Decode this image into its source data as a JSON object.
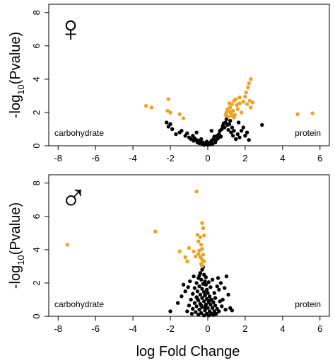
{
  "figure": {
    "xlabel": "log Fold Change"
  },
  "colors": {
    "significant": "#F0A020",
    "nonsignificant": "#000000",
    "axis": "#000000"
  },
  "chart_data": [
    {
      "type": "scatter",
      "panel": "top",
      "symbol": "♀",
      "symbol_meaning": "female",
      "ylabel_main": "-log",
      "ylabel_sub": "10",
      "ylabel_tail": "(Pvalue)",
      "left_annotation": "carbohydrate",
      "right_annotation": "protein",
      "xlim": [
        -8.5,
        6.5
      ],
      "ylim": [
        0,
        8.5
      ],
      "xticks": [
        "-8",
        "-6",
        "-4",
        "-2",
        "0",
        "2",
        "4",
        "6"
      ],
      "yticks": [
        "0",
        "2",
        "4",
        "6",
        "8"
      ],
      "series": [
        {
          "significance": "significant",
          "color": "#F0A020",
          "points": [
            [
              -3.3,
              2.4
            ],
            [
              -3.0,
              2.3
            ],
            [
              -2.1,
              2.8
            ],
            [
              -2.15,
              2.1
            ],
            [
              -2.0,
              2.0
            ],
            [
              -1.5,
              1.9
            ],
            [
              -1.3,
              1.65
            ],
            [
              4.8,
              1.9
            ],
            [
              5.6,
              1.95
            ],
            [
              2.3,
              4.0
            ],
            [
              2.2,
              3.75
            ],
            [
              2.15,
              3.5
            ],
            [
              2.05,
              3.2
            ],
            [
              2.0,
              2.95
            ],
            [
              2.25,
              2.7
            ],
            [
              1.9,
              2.65
            ],
            [
              1.7,
              2.55
            ],
            [
              1.5,
              2.8
            ],
            [
              1.4,
              2.7
            ],
            [
              1.3,
              2.5
            ],
            [
              1.2,
              2.3
            ],
            [
              1.15,
              2.55
            ],
            [
              1.05,
              2.2
            ],
            [
              1.0,
              2.0
            ],
            [
              0.95,
              1.85
            ],
            [
              1.1,
              1.75
            ],
            [
              1.25,
              1.95
            ],
            [
              1.35,
              2.1
            ],
            [
              1.45,
              1.85
            ],
            [
              1.6,
              2.2
            ],
            [
              1.8,
              2.0
            ],
            [
              2.1,
              2.5
            ],
            [
              2.3,
              2.3
            ],
            [
              1.7,
              2.9
            ],
            [
              1.55,
              2.45
            ],
            [
              1.2,
              2.05
            ],
            [
              1.4,
              1.7
            ],
            [
              1.3,
              1.8
            ],
            [
              2.4,
              2.6
            ]
          ]
        },
        {
          "significance": "nonsignificant",
          "color": "#000000",
          "points": [
            [
              -2.2,
              1.4
            ],
            [
              -2.0,
              1.3
            ],
            [
              -2.1,
              1.15
            ],
            [
              -1.9,
              1.0
            ],
            [
              -1.7,
              0.7
            ],
            [
              -1.5,
              0.8
            ],
            [
              -1.4,
              0.9
            ],
            [
              -1.2,
              0.6
            ],
            [
              -1.1,
              0.75
            ],
            [
              -1.0,
              0.5
            ],
            [
              -0.9,
              0.4
            ],
            [
              -0.8,
              0.6
            ],
            [
              -0.75,
              0.3
            ],
            [
              -0.7,
              0.45
            ],
            [
              -0.6,
              0.35
            ],
            [
              -0.55,
              0.2
            ],
            [
              -0.5,
              0.3
            ],
            [
              -0.45,
              0.15
            ],
            [
              -0.4,
              0.25
            ],
            [
              -0.35,
              0.4
            ],
            [
              -0.3,
              0.1
            ],
            [
              -0.25,
              0.2
            ],
            [
              -0.2,
              0.05
            ],
            [
              -0.15,
              0.15
            ],
            [
              -0.1,
              0.1
            ],
            [
              -0.05,
              0.25
            ],
            [
              0.0,
              0.05
            ],
            [
              0.05,
              0.15
            ],
            [
              0.1,
              0.08
            ],
            [
              0.15,
              0.2
            ],
            [
              0.2,
              0.3
            ],
            [
              0.25,
              0.1
            ],
            [
              0.3,
              0.4
            ],
            [
              0.35,
              0.55
            ],
            [
              0.4,
              0.2
            ],
            [
              0.45,
              0.35
            ],
            [
              0.5,
              0.6
            ],
            [
              0.55,
              0.45
            ],
            [
              0.6,
              0.7
            ],
            [
              0.65,
              0.9
            ],
            [
              0.7,
              0.55
            ],
            [
              0.75,
              1.0
            ],
            [
              0.8,
              1.2
            ],
            [
              0.85,
              1.35
            ],
            [
              0.9,
              1.1
            ],
            [
              0.95,
              1.4
            ],
            [
              1.0,
              1.6
            ],
            [
              1.05,
              1.25
            ],
            [
              1.1,
              0.95
            ],
            [
              1.15,
              1.3
            ],
            [
              1.2,
              1.5
            ],
            [
              1.25,
              0.8
            ],
            [
              1.3,
              1.1
            ],
            [
              1.35,
              0.6
            ],
            [
              1.4,
              0.9
            ],
            [
              1.5,
              0.4
            ],
            [
              1.6,
              0.7
            ],
            [
              1.7,
              0.5
            ],
            [
              1.8,
              0.9
            ],
            [
              1.9,
              1.1
            ],
            [
              2.0,
              0.6
            ],
            [
              2.1,
              0.8
            ],
            [
              2.2,
              0.35
            ],
            [
              2.9,
              1.25
            ],
            [
              0.2,
              0.9
            ],
            [
              -0.6,
              0.8
            ],
            [
              1.65,
              1.4
            ]
          ]
        }
      ]
    },
    {
      "type": "scatter",
      "panel": "bottom",
      "symbol": "♂",
      "symbol_meaning": "male",
      "ylabel_main": "-log",
      "ylabel_sub": "10",
      "ylabel_tail": "(Pvalue)",
      "left_annotation": "carbohydrate",
      "right_annotation": "protein",
      "xlim": [
        -8.5,
        6.5
      ],
      "ylim": [
        0,
        8.5
      ],
      "xticks": [
        "-8",
        "-6",
        "-4",
        "-2",
        "0",
        "2",
        "4",
        "6"
      ],
      "yticks": [
        "0",
        "2",
        "4",
        "6",
        "8"
      ],
      "series": [
        {
          "significance": "significant",
          "color": "#F0A020",
          "points": [
            [
              -7.5,
              4.3
            ],
            [
              -2.8,
              5.1
            ],
            [
              -0.6,
              7.5
            ],
            [
              -0.3,
              5.6
            ],
            [
              -0.25,
              5.3
            ],
            [
              -0.55,
              4.9
            ],
            [
              -0.4,
              4.75
            ],
            [
              -0.2,
              4.85
            ],
            [
              -0.5,
              4.5
            ],
            [
              -0.35,
              4.3
            ],
            [
              -0.3,
              4.05
            ],
            [
              -0.45,
              3.95
            ],
            [
              -0.5,
              3.75
            ],
            [
              -0.25,
              3.7
            ],
            [
              -0.4,
              3.55
            ],
            [
              -0.3,
              3.4
            ],
            [
              -0.2,
              3.3
            ],
            [
              -0.35,
              3.15
            ],
            [
              -0.3,
              3.0
            ],
            [
              -1.0,
              4.1
            ],
            [
              -1.2,
              3.55
            ],
            [
              -1.5,
              3.9
            ],
            [
              -1.1,
              3.3
            ],
            [
              -0.75,
              3.9
            ],
            [
              -0.65,
              3.6
            ]
          ]
        },
        {
          "significance": "nonsignificant",
          "color": "#000000",
          "points": [
            [
              -0.3,
              2.8
            ],
            [
              -0.4,
              2.6
            ],
            [
              -0.2,
              2.5
            ],
            [
              -0.5,
              2.3
            ],
            [
              -0.35,
              2.2
            ],
            [
              -0.15,
              2.1
            ],
            [
              -0.6,
              2.0
            ],
            [
              -0.25,
              1.95
            ],
            [
              -0.1,
              1.9
            ],
            [
              -0.45,
              1.8
            ],
            [
              -0.7,
              1.7
            ],
            [
              -0.3,
              1.65
            ],
            [
              -0.05,
              1.6
            ],
            [
              -0.55,
              1.5
            ],
            [
              -0.2,
              1.45
            ],
            [
              0.0,
              1.4
            ],
            [
              -0.8,
              1.35
            ],
            [
              -0.4,
              1.3
            ],
            [
              -0.15,
              1.25
            ],
            [
              0.1,
              1.2
            ],
            [
              -0.6,
              1.15
            ],
            [
              -0.3,
              1.1
            ],
            [
              -0.05,
              1.05
            ],
            [
              0.2,
              1.0
            ],
            [
              -0.9,
              1.0
            ],
            [
              -0.5,
              0.95
            ],
            [
              -0.2,
              0.9
            ],
            [
              0.05,
              0.85
            ],
            [
              0.3,
              0.85
            ],
            [
              -0.7,
              0.8
            ],
            [
              -0.4,
              0.75
            ],
            [
              -0.1,
              0.7
            ],
            [
              0.15,
              0.7
            ],
            [
              0.4,
              0.65
            ],
            [
              -1.0,
              0.65
            ],
            [
              -0.6,
              0.6
            ],
            [
              -0.3,
              0.55
            ],
            [
              0.0,
              0.5
            ],
            [
              0.25,
              0.5
            ],
            [
              0.5,
              0.45
            ],
            [
              -0.8,
              0.45
            ],
            [
              -0.45,
              0.4
            ],
            [
              -0.15,
              0.35
            ],
            [
              0.1,
              0.3
            ],
            [
              0.35,
              0.3
            ],
            [
              0.6,
              0.3
            ],
            [
              -1.1,
              0.3
            ],
            [
              -0.65,
              0.25
            ],
            [
              -0.35,
              0.2
            ],
            [
              -0.05,
              0.15
            ],
            [
              0.2,
              0.15
            ],
            [
              0.45,
              0.15
            ],
            [
              -0.85,
              0.15
            ],
            [
              -0.5,
              0.1
            ],
            [
              -0.2,
              0.05
            ],
            [
              0.05,
              0.05
            ],
            [
              0.3,
              0.08
            ],
            [
              -1.2,
              1.5
            ],
            [
              -1.3,
              1.9
            ],
            [
              -1.6,
              0.8
            ],
            [
              -2.0,
              0.3
            ],
            [
              -1.4,
              1.2
            ],
            [
              0.6,
              1.6
            ],
            [
              0.8,
              1.0
            ],
            [
              0.9,
              1.7
            ],
            [
              1.0,
              2.4
            ],
            [
              1.1,
              1.3
            ],
            [
              1.2,
              0.5
            ],
            [
              1.3,
              0.35
            ],
            [
              0.7,
              2.0
            ],
            [
              0.55,
              2.3
            ],
            [
              0.75,
              0.6
            ],
            [
              0.95,
              0.4
            ],
            [
              -0.25,
              2.95
            ],
            [
              -0.45,
              2.45
            ],
            [
              0.15,
              1.75
            ],
            [
              0.35,
              1.4
            ],
            [
              -0.95,
              2.1
            ],
            [
              -1.05,
              1.75
            ],
            [
              -0.75,
              2.4
            ],
            [
              0.65,
              0.9
            ],
            [
              -0.1,
              2.35
            ],
            [
              0.05,
              2.05
            ],
            [
              0.25,
              2.2
            ],
            [
              -0.55,
              1.05
            ],
            [
              -0.35,
              0.65
            ],
            [
              0.4,
              1.1
            ],
            [
              -0.15,
              0.55
            ],
            [
              0.1,
              0.95
            ],
            [
              0.5,
              1.8
            ]
          ]
        }
      ]
    }
  ]
}
